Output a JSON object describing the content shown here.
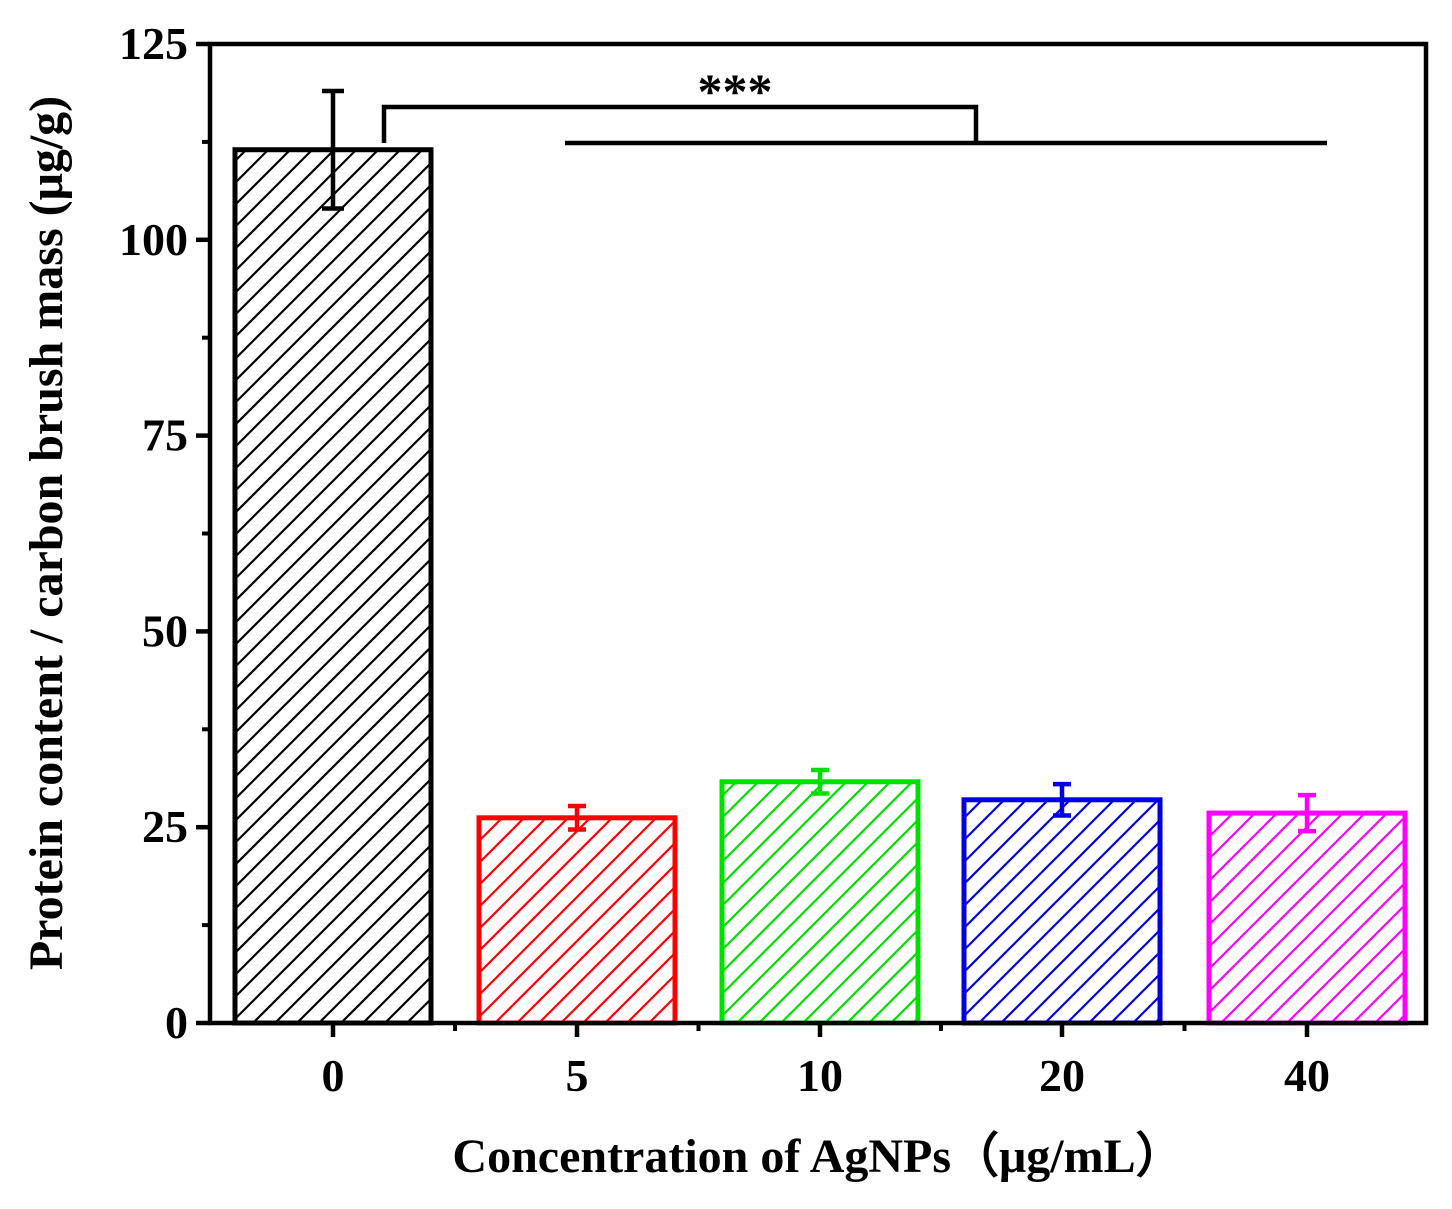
{
  "chart_data": {
    "type": "bar",
    "title": "",
    "xlabel": "Concentration of AgNPs（μg/mL）",
    "ylabel": "Protein content / carbon brush mass (μg/g)",
    "categories": [
      "0",
      "5",
      "10",
      "20",
      "40"
    ],
    "values": [
      111.5,
      26.2,
      30.8,
      28.5,
      26.8
    ],
    "errors": [
      7.5,
      1.5,
      1.5,
      2.0,
      2.3
    ],
    "colors": [
      "#000000",
      "#ff0000",
      "#00e000",
      "#0000e6",
      "#ff00ff"
    ],
    "ylim": [
      0,
      125
    ],
    "yticks": [
      "0",
      "25",
      "50",
      "75",
      "100",
      "125"
    ],
    "grid": false,
    "significance": {
      "label": "***",
      "from_category": "0",
      "to_categories": [
        "5",
        "10",
        "20",
        "40"
      ]
    }
  }
}
